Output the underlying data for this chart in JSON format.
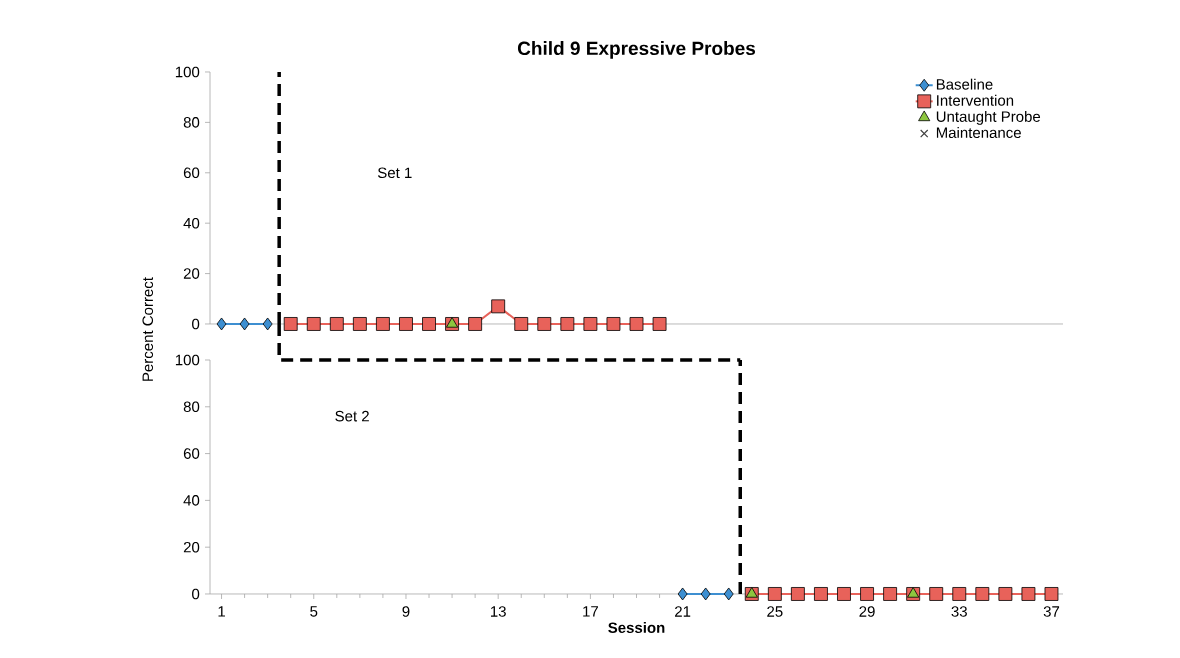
{
  "chart_data": [
    {
      "type": "line",
      "title": "Child 9 Expressive Probes",
      "xlim": [
        0.5,
        37.5
      ],
      "ylim": [
        0,
        100
      ],
      "yticks": [
        0,
        20,
        40,
        60,
        80,
        100
      ],
      "tick_labels": "y",
      "legend": "top right",
      "annotations": [
        "Set 1"
      ],
      "ref_lines": [
        {
          "axis": "x",
          "value": 3.5,
          "color": "#000000",
          "line_style": "dashed"
        }
      ],
      "series": [
        {
          "name": "Baseline",
          "color": "#3d8fd1",
          "marker": "diamond",
          "x": [
            1,
            2,
            3
          ],
          "values": [
            0,
            0,
            0
          ]
        },
        {
          "name": "Intervention",
          "color": "#e8625a",
          "marker": "square",
          "x": [
            4,
            5,
            6,
            7,
            8,
            9,
            10,
            11,
            12,
            13,
            14,
            15,
            16,
            17,
            18,
            19,
            20
          ],
          "values": [
            0,
            0,
            0,
            0,
            0,
            0,
            0,
            0,
            0,
            7,
            0,
            0,
            0,
            0,
            0,
            0,
            0
          ]
        },
        {
          "name": "Untaught Probe",
          "type": "scatter",
          "color": "#8dc63f",
          "marker": "triangle",
          "x": [
            11
          ],
          "values": [
            0
          ]
        },
        {
          "name": "Maintenance",
          "type": "scatter",
          "color": "#404040",
          "marker": "cross"
        }
      ]
    },
    {
      "type": "line",
      "xlabel": "Session",
      "ylabel": "Percent Correct",
      "xlim": [
        0.5,
        37.5
      ],
      "ylim": [
        0,
        100
      ],
      "xticks": [
        1,
        5,
        9,
        13,
        17,
        21,
        25,
        29,
        33,
        37
      ],
      "yticks": [
        0,
        20,
        40,
        60,
        80,
        100
      ],
      "annotations": [
        "Set 2"
      ],
      "ref_lines": [
        {
          "axis": "x",
          "value": 23.5,
          "color": "#000000",
          "line_style": "dashed"
        }
      ],
      "series": [
        {
          "color": "#3d8fd1",
          "marker": "diamond",
          "x": [
            21,
            22,
            23
          ],
          "values": [
            0,
            0,
            0
          ]
        },
        {
          "color": "#e8625a",
          "marker": "square",
          "x": [
            24,
            25,
            26,
            27,
            28,
            29,
            30,
            31,
            32,
            33,
            34,
            35,
            36,
            37
          ],
          "values": [
            0,
            0,
            0,
            0,
            0,
            0,
            0,
            0,
            0,
            0,
            0,
            0,
            0,
            0
          ]
        },
        {
          "type": "scatter",
          "color": "#8dc63f",
          "marker": "triangle",
          "x": [
            24,
            31
          ],
          "values": [
            0,
            0
          ]
        }
      ]
    }
  ]
}
